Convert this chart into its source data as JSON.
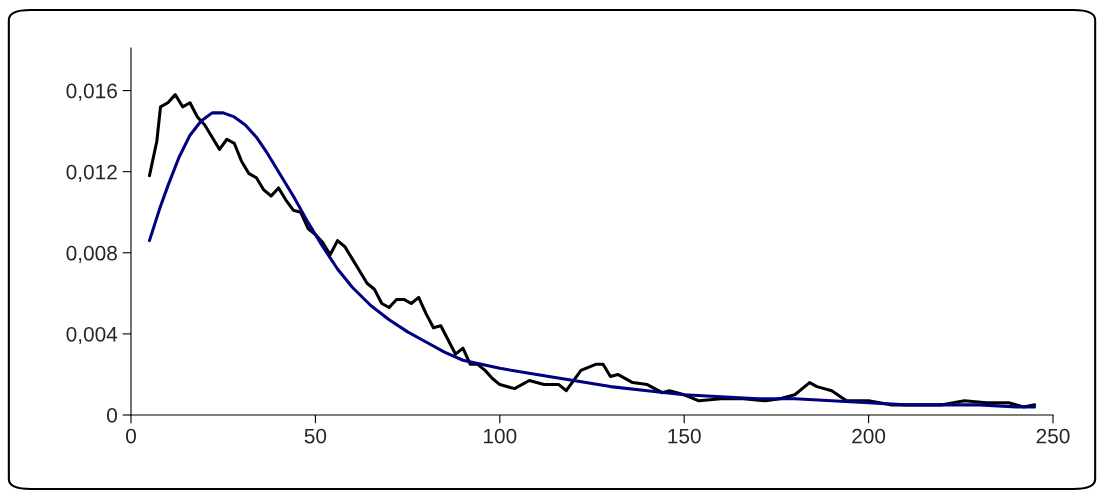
{
  "chart_data": {
    "type": "line",
    "xlim": [
      0,
      250
    ],
    "ylim": [
      0,
      0.0181
    ],
    "xticks": [
      0,
      50,
      100,
      150,
      200,
      250
    ],
    "yticks": [
      {
        "value": 0,
        "label": "0"
      },
      {
        "value": 0.004,
        "label": "0,004"
      },
      {
        "value": 0.008,
        "label": "0,008"
      },
      {
        "value": 0.012,
        "label": "0,012"
      },
      {
        "value": 0.016,
        "label": "0,016"
      }
    ],
    "grid": false,
    "marker": "none",
    "line_style": "solid",
    "series": [
      {
        "color": "#000000",
        "x": [
          5,
          7,
          8,
          10,
          12,
          14,
          16,
          18,
          20,
          22,
          24,
          26,
          28,
          30,
          32,
          34,
          36,
          38,
          40,
          42,
          44,
          46,
          48,
          50,
          52,
          54,
          56,
          58,
          60,
          62,
          64,
          66,
          68,
          70,
          72,
          74,
          76,
          78,
          80,
          82,
          84,
          86,
          88,
          90,
          92,
          94,
          96,
          98,
          100,
          104,
          108,
          112,
          116,
          118,
          120,
          122,
          126,
          128,
          130,
          132,
          136,
          140,
          144,
          146,
          150,
          154,
          160,
          166,
          172,
          176,
          180,
          182,
          184,
          186,
          190,
          194,
          200,
          206,
          214,
          220,
          226,
          232,
          238,
          242,
          245
        ],
        "values": [
          0.0118,
          0.0135,
          0.0152,
          0.0154,
          0.0158,
          0.0152,
          0.0154,
          0.0147,
          0.0143,
          0.0137,
          0.0131,
          0.0136,
          0.0134,
          0.0125,
          0.0119,
          0.0117,
          0.0111,
          0.0108,
          0.0112,
          0.0106,
          0.0101,
          0.01,
          0.0092,
          0.0089,
          0.0085,
          0.0079,
          0.0086,
          0.0083,
          0.0077,
          0.0071,
          0.0065,
          0.0062,
          0.0055,
          0.0053,
          0.0057,
          0.0057,
          0.0055,
          0.0058,
          0.005,
          0.0043,
          0.0044,
          0.0037,
          0.003,
          0.0033,
          0.0025,
          0.0025,
          0.0022,
          0.0018,
          0.0015,
          0.0013,
          0.0017,
          0.0015,
          0.0015,
          0.0012,
          0.0017,
          0.0022,
          0.0025,
          0.0025,
          0.0019,
          0.002,
          0.0016,
          0.0015,
          0.0011,
          0.0012,
          0.001,
          0.0007,
          0.0008,
          0.0008,
          0.0007,
          0.0008,
          0.001,
          0.0013,
          0.0016,
          0.0014,
          0.0012,
          0.0007,
          0.0007,
          0.0005,
          0.0005,
          0.0005,
          0.0007,
          0.0006,
          0.0006,
          0.0004,
          0.0005
        ]
      },
      {
        "color": "#000080",
        "x": [
          5,
          8,
          10,
          13,
          16,
          19,
          22,
          25,
          28,
          31,
          34,
          37,
          40,
          44,
          48,
          52,
          56,
          60,
          65,
          70,
          75,
          80,
          85,
          90,
          100,
          110,
          120,
          130,
          140,
          150,
          160,
          170,
          180,
          190,
          200,
          210,
          220,
          230,
          240,
          245
        ],
        "values": [
          0.0086,
          0.0103,
          0.0113,
          0.0127,
          0.0138,
          0.0145,
          0.0149,
          0.0149,
          0.0147,
          0.0143,
          0.0137,
          0.0129,
          0.012,
          0.0108,
          0.0095,
          0.0083,
          0.0072,
          0.0063,
          0.0054,
          0.0047,
          0.0041,
          0.0036,
          0.0031,
          0.0027,
          0.0023,
          0.002,
          0.0017,
          0.0014,
          0.0012,
          0.001,
          0.0009,
          0.0008,
          0.0008,
          0.0007,
          0.0006,
          0.0005,
          0.0005,
          0.0005,
          0.0004,
          0.0004
        ]
      }
    ]
  }
}
